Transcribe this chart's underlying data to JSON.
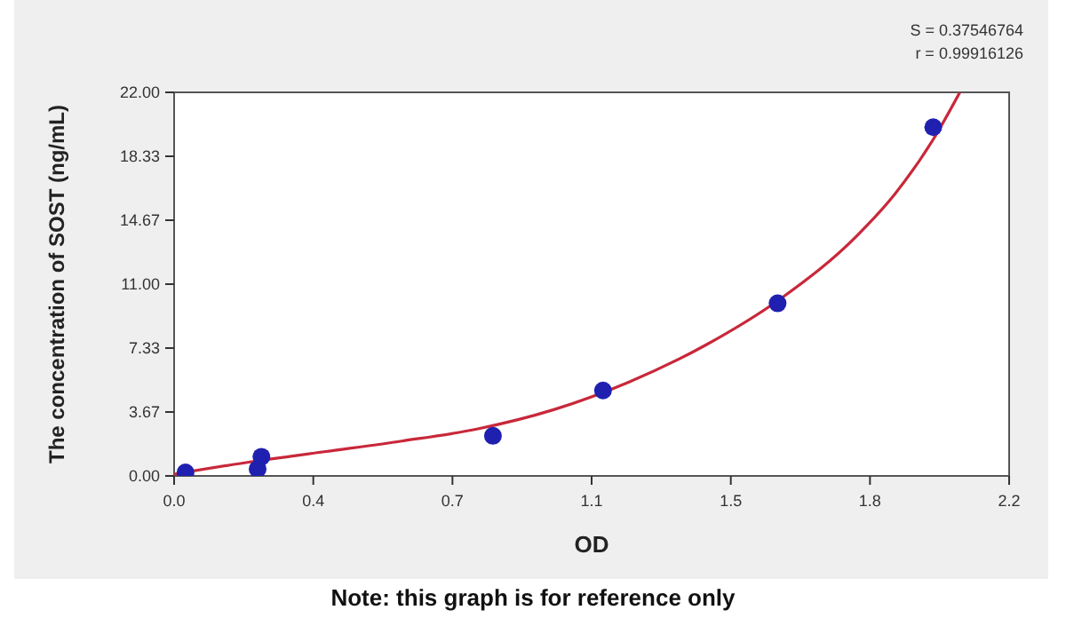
{
  "chart_data": {
    "type": "scatter",
    "xlabel": "OD",
    "ylabel": "The concentration of SOST (ng/mL)",
    "annotations": [
      "S = 0.37546764",
      "r = 0.99916126",
      "Note: this graph is for reference only"
    ],
    "xlim": [
      0,
      2.2
    ],
    "xticks": [
      {
        "value": 0,
        "label": "0.0"
      },
      {
        "value": 0.36667,
        "label": "0.4"
      },
      {
        "value": 0.73333,
        "label": "0.7"
      },
      {
        "value": 1.1,
        "label": "1.1"
      },
      {
        "value": 1.46667,
        "label": "1.5"
      },
      {
        "value": 1.83333,
        "label": "1.8"
      },
      {
        "value": 2.2,
        "label": "2.2"
      }
    ],
    "ylim": [
      0,
      22
    ],
    "yticks": [
      {
        "value": 0,
        "label": "0.00"
      },
      {
        "value": 3.66667,
        "label": "3.67"
      },
      {
        "value": 7.33333,
        "label": "7.33"
      },
      {
        "value": 11,
        "label": "11.00"
      },
      {
        "value": 14.66667,
        "label": "14.67"
      },
      {
        "value": 18.33333,
        "label": "18.33"
      },
      {
        "value": 22,
        "label": "22.00"
      }
    ],
    "grid": false,
    "series": [
      {
        "type": "line",
        "color": "#c8283a",
        "line_style": "solid",
        "marker": "none",
        "x": [
          0,
          0.2,
          0.4,
          0.6,
          0.8,
          1.0,
          1.2,
          1.4,
          1.6,
          1.8,
          1.9,
          2.0,
          2.07
        ],
        "values": [
          0.1,
          0.8,
          1.4,
          2.0,
          2.7,
          3.8,
          5.4,
          7.5,
          10.2,
          13.8,
          16.2,
          19.3,
          22
        ]
      },
      {
        "color": "#2020b0",
        "marker": "circle",
        "x": [
          0.03,
          0.22,
          0.23,
          0.84,
          1.13,
          1.59,
          2.0
        ],
        "values": [
          0.2,
          0.4,
          1.1,
          2.3,
          4.9,
          9.9,
          20
        ]
      }
    ]
  }
}
